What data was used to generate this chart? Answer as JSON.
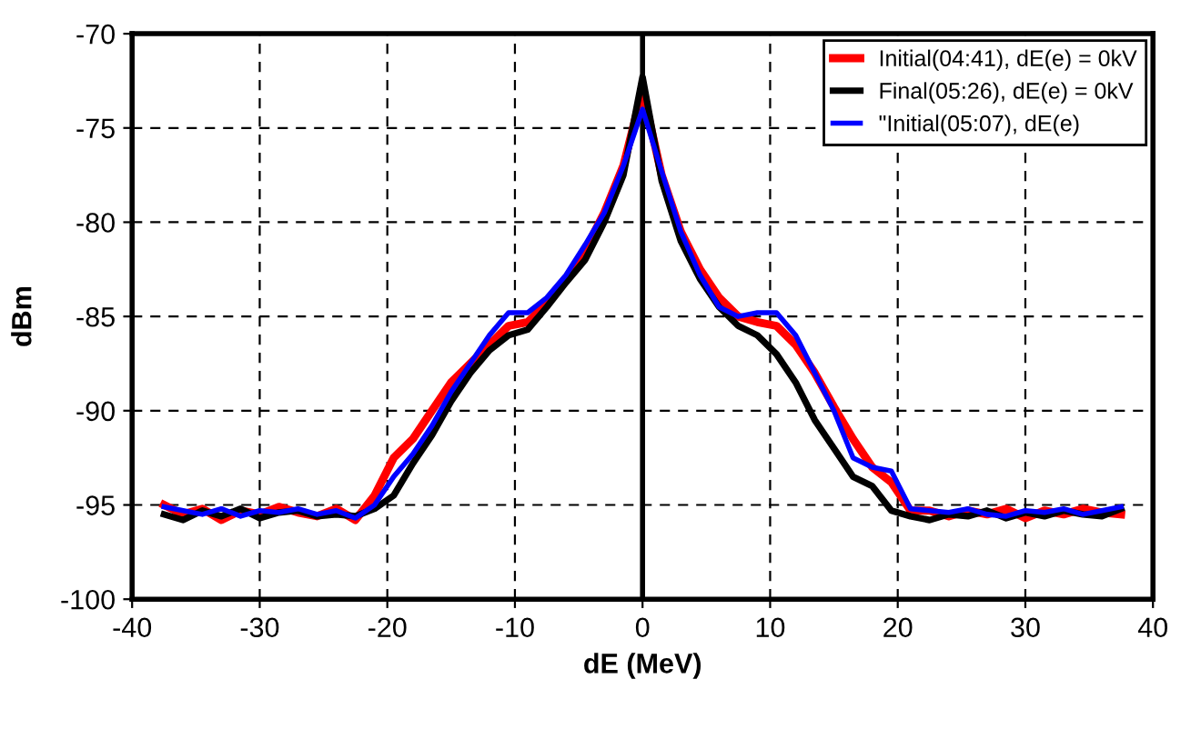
{
  "chart_data": {
    "type": "line",
    "xlabel": "dE (MeV)",
    "ylabel": "dBm",
    "x": [
      -37.5,
      -36,
      -34.5,
      -33,
      -31.5,
      -30,
      -28.5,
      -27,
      -25.5,
      -24,
      -22.5,
      -21,
      -19.5,
      -18,
      -16.5,
      -15,
      -13.5,
      -12,
      -10.5,
      -9,
      -7.5,
      -6,
      -4.5,
      -3,
      -1.5,
      0,
      1.5,
      3,
      4.5,
      6,
      7.5,
      9,
      10.5,
      12,
      13.5,
      15,
      16.5,
      18,
      19.5,
      21,
      22.5,
      24,
      25.5,
      27,
      28.5,
      30,
      31.5,
      33,
      34.5,
      36,
      37.5
    ],
    "series": [
      {
        "name": "Initial(04:41), dE(e) = 0kV",
        "color": "#ff0000",
        "values": [
          -95.0,
          -95.5,
          -95.2,
          -95.8,
          -95.3,
          -95.5,
          -95.1,
          -95.4,
          -95.6,
          -95.2,
          -95.8,
          -94.5,
          -92.5,
          -91.5,
          -90,
          -88.5,
          -87.5,
          -86.5,
          -85.5,
          -85.3,
          -84.3,
          -83,
          -81.5,
          -79.5,
          -77,
          -73,
          -77.5,
          -80.5,
          -82.5,
          -84,
          -85,
          -85.3,
          -85.5,
          -86.5,
          -88,
          -89.8,
          -91.5,
          -93,
          -93.8,
          -95.3,
          -95.3,
          -95.6,
          -95.3,
          -95.5,
          -95.2,
          -95.7,
          -95.3,
          -95.5,
          -95.2,
          -95.4,
          -95.5
        ]
      },
      {
        "name": "Final(05:26), dE(e) = 0kV",
        "color": "#000000",
        "values": [
          -95.5,
          -95.8,
          -95.3,
          -95.6,
          -95.2,
          -95.7,
          -95.4,
          -95.3,
          -95.6,
          -95.5,
          -95.6,
          -95.2,
          -94.5,
          -92.8,
          -91.3,
          -89.5,
          -88,
          -86.8,
          -86,
          -85.7,
          -84.5,
          -83.2,
          -82,
          -80,
          -77.5,
          -72.3,
          -77.8,
          -81,
          -83,
          -84.5,
          -85.5,
          -86,
          -87,
          -88.5,
          -90.5,
          -92,
          -93.5,
          -94,
          -95.3,
          -95.6,
          -95.8,
          -95.5,
          -95.6,
          -95.3,
          -95.7,
          -95.4,
          -95.6,
          -95.3,
          -95.5,
          -95.6,
          -95.2
        ]
      },
      {
        "name": "\"Initial(05:07), dE(e)",
        "color": "#0000ff",
        "values": [
          -95.1,
          -95.3,
          -95.5,
          -95.2,
          -95.6,
          -95.3,
          -95.4,
          -95.2,
          -95.5,
          -95.3,
          -95.7,
          -95.0,
          -93.5,
          -92.3,
          -90.8,
          -89,
          -87.5,
          -86,
          -84.8,
          -84.8,
          -84,
          -82.8,
          -81.2,
          -79.5,
          -77,
          -74,
          -77.3,
          -80.5,
          -82.8,
          -84.5,
          -85,
          -84.8,
          -84.8,
          -86,
          -88,
          -90,
          -92.5,
          -93,
          -93.2,
          -95.2,
          -95.3,
          -95.4,
          -95.2,
          -95.5,
          -95.6,
          -95.3,
          -95.4,
          -95.2,
          -95.5,
          -95.3,
          -95.1
        ]
      }
    ],
    "xlim": [
      -40,
      40
    ],
    "xticks": [
      -40,
      -30,
      -20,
      -10,
      0,
      10,
      20,
      30,
      40
    ],
    "ylim": [
      -100,
      -70
    ],
    "yticks": [
      -100,
      -95,
      -90,
      -85,
      -80,
      -75,
      -70
    ],
    "ref_lines": [
      {
        "axis": "x",
        "value": 0,
        "color": "#000000"
      }
    ],
    "grid": true,
    "legend": "top right",
    "line_style": "solid",
    "marker": "none"
  }
}
